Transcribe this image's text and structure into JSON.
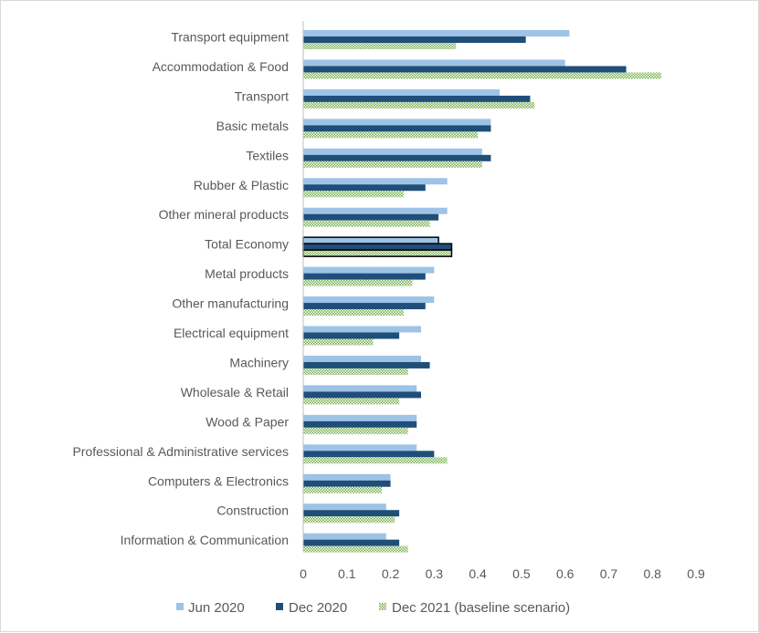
{
  "chart_data": {
    "type": "bar",
    "orientation": "horizontal",
    "title": "",
    "xlabel": "",
    "ylabel": "",
    "xlim": [
      0,
      0.9
    ],
    "xticks": [
      "0",
      "0.1",
      "0.2",
      "0.3",
      "0.4",
      "0.5",
      "0.6",
      "0.7",
      "0.8",
      "0.9"
    ],
    "grid": false,
    "legend_position": "bottom",
    "categories": [
      "Transport equipment",
      "Accommodation & Food",
      "Transport",
      "Basic metals",
      "Textiles",
      "Rubber & Plastic",
      "Other mineral products",
      "Total Economy",
      "Metal products",
      "Other manufacturing",
      "Electrical equipment",
      "Machinery",
      "Wholesale & Retail",
      "Wood & Paper",
      "Professional & Administrative services",
      "Computers & Electronics",
      "Construction",
      "Information & Communication"
    ],
    "highlighted_category": "Total Economy",
    "series": [
      {
        "name": "Jun 2020",
        "color": "#9dc3e6",
        "style": "solid",
        "values": [
          0.61,
          0.6,
          0.45,
          0.43,
          0.41,
          0.33,
          0.33,
          0.31,
          0.3,
          0.3,
          0.27,
          0.27,
          0.26,
          0.26,
          0.26,
          0.2,
          0.19,
          0.19
        ]
      },
      {
        "name": "Dec 2020",
        "color": "#1f4e79",
        "style": "solid",
        "values": [
          0.51,
          0.74,
          0.52,
          0.43,
          0.43,
          0.28,
          0.31,
          0.34,
          0.28,
          0.28,
          0.22,
          0.29,
          0.27,
          0.26,
          0.3,
          0.2,
          0.22,
          0.22
        ]
      },
      {
        "name": "Dec 2021 (baseline scenario)",
        "color": "#70ad47",
        "style": "hatched",
        "values": [
          0.35,
          0.82,
          0.53,
          0.4,
          0.41,
          0.23,
          0.29,
          0.34,
          0.25,
          0.23,
          0.16,
          0.24,
          0.22,
          0.24,
          0.33,
          0.18,
          0.21,
          0.24
        ]
      }
    ]
  }
}
